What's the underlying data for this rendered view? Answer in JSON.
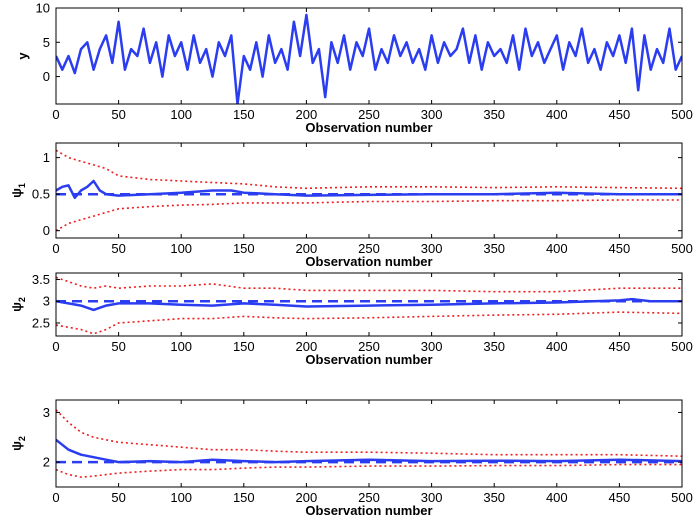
{
  "chart_data": [
    {
      "type": "line",
      "xlabel": "Observation number",
      "ylabel": "y",
      "ylabel_sub": "",
      "xlim": [
        0,
        500
      ],
      "ylim": [
        -4,
        10
      ],
      "xticks": [
        0,
        50,
        100,
        150,
        200,
        250,
        300,
        350,
        400,
        450,
        500
      ],
      "yticks": [
        0,
        5,
        10
      ],
      "series": [
        {
          "style": "solid",
          "color": "#2b3df0",
          "x": [
            0,
            5,
            10,
            15,
            20,
            25,
            30,
            35,
            40,
            45,
            50,
            55,
            60,
            65,
            70,
            75,
            80,
            85,
            90,
            95,
            100,
            105,
            110,
            115,
            120,
            125,
            130,
            135,
            140,
            145,
            150,
            155,
            160,
            165,
            170,
            175,
            180,
            185,
            190,
            195,
            200,
            205,
            210,
            215,
            220,
            225,
            230,
            235,
            240,
            245,
            250,
            255,
            260,
            265,
            270,
            275,
            280,
            285,
            290,
            295,
            300,
            305,
            310,
            315,
            320,
            325,
            330,
            335,
            340,
            345,
            350,
            355,
            360,
            365,
            370,
            375,
            380,
            385,
            390,
            395,
            400,
            405,
            410,
            415,
            420,
            425,
            430,
            435,
            440,
            445,
            450,
            455,
            460,
            465,
            470,
            475,
            480,
            485,
            490,
            495,
            500
          ],
          "y": [
            3,
            1,
            3,
            0.5,
            4,
            5,
            1,
            4,
            6,
            2,
            8,
            1,
            4,
            3,
            7,
            2,
            5,
            0,
            6,
            3,
            5,
            1,
            6,
            2,
            4,
            0,
            5,
            3,
            6,
            -4,
            3,
            1,
            5,
            0,
            6,
            2,
            4,
            1,
            8,
            3,
            9,
            2,
            4,
            -3,
            5,
            2,
            6,
            1,
            5,
            3,
            7,
            1,
            4,
            2,
            6,
            3,
            5,
            2,
            4,
            1,
            6,
            2,
            5,
            3,
            4,
            7,
            2,
            6,
            1,
            5,
            3,
            4,
            2,
            6,
            1,
            7,
            3,
            5,
            2,
            4,
            6,
            1,
            5,
            3,
            7,
            2,
            4,
            1,
            5,
            3,
            6,
            2,
            7,
            -2,
            6,
            1,
            4,
            2,
            7,
            1,
            3
          ]
        }
      ]
    },
    {
      "type": "line",
      "xlabel": "Observation number",
      "ylabel": "ψ",
      "ylabel_sub": "1",
      "xlim": [
        0,
        500
      ],
      "ylim": [
        -0.1,
        1.2
      ],
      "xticks": [
        0,
        50,
        100,
        150,
        200,
        250,
        300,
        350,
        400,
        450,
        500
      ],
      "yticks": [
        0,
        0.5,
        1
      ],
      "series": [
        {
          "style": "dotted",
          "color": "#ee1c1c",
          "x": [
            0,
            10,
            20,
            30,
            40,
            50,
            75,
            100,
            125,
            150,
            175,
            200,
            250,
            300,
            350,
            400,
            450,
            500
          ],
          "y": [
            1.1,
            1.0,
            0.95,
            0.9,
            0.85,
            0.75,
            0.7,
            0.68,
            0.66,
            0.64,
            0.6,
            0.58,
            0.6,
            0.6,
            0.59,
            0.6,
            0.59,
            0.58
          ]
        },
        {
          "style": "dotted",
          "color": "#ee1c1c",
          "x": [
            0,
            10,
            20,
            30,
            40,
            50,
            75,
            100,
            125,
            150,
            175,
            200,
            250,
            300,
            350,
            400,
            450,
            500
          ],
          "y": [
            0.0,
            0.1,
            0.15,
            0.2,
            0.25,
            0.3,
            0.33,
            0.35,
            0.36,
            0.38,
            0.38,
            0.38,
            0.4,
            0.4,
            0.41,
            0.41,
            0.42,
            0.42
          ]
        },
        {
          "style": "dashed",
          "color": "#2b3df0",
          "x": [
            0,
            500
          ],
          "y": [
            0.5,
            0.5
          ]
        },
        {
          "style": "solid",
          "color": "#2b3df0",
          "x": [
            0,
            5,
            10,
            15,
            20,
            25,
            30,
            35,
            40,
            50,
            75,
            100,
            125,
            140,
            150,
            175,
            200,
            250,
            300,
            350,
            400,
            450,
            500
          ],
          "y": [
            0.55,
            0.6,
            0.62,
            0.45,
            0.55,
            0.6,
            0.68,
            0.55,
            0.5,
            0.48,
            0.5,
            0.52,
            0.55,
            0.55,
            0.52,
            0.5,
            0.48,
            0.49,
            0.5,
            0.5,
            0.52,
            0.5,
            0.5
          ]
        }
      ]
    },
    {
      "type": "line",
      "xlabel": "Observation number",
      "ylabel": "ψ",
      "ylabel_sub": "2",
      "xlim": [
        0,
        500
      ],
      "ylim": [
        2.2,
        3.65
      ],
      "xticks": [
        0,
        50,
        100,
        150,
        200,
        250,
        300,
        350,
        400,
        450,
        500
      ],
      "yticks": [
        2.5,
        3,
        3.5
      ],
      "series": [
        {
          "style": "dotted",
          "color": "#ee1c1c",
          "x": [
            0,
            10,
            20,
            30,
            40,
            50,
            75,
            100,
            125,
            150,
            175,
            200,
            250,
            300,
            350,
            400,
            450,
            500
          ],
          "y": [
            3.55,
            3.45,
            3.35,
            3.3,
            3.35,
            3.3,
            3.35,
            3.35,
            3.4,
            3.3,
            3.3,
            3.25,
            3.25,
            3.25,
            3.22,
            3.22,
            3.3,
            3.3
          ]
        },
        {
          "style": "dotted",
          "color": "#ee1c1c",
          "x": [
            0,
            10,
            20,
            30,
            40,
            50,
            75,
            100,
            125,
            150,
            175,
            200,
            250,
            300,
            350,
            400,
            450,
            500
          ],
          "y": [
            2.45,
            2.4,
            2.35,
            2.25,
            2.35,
            2.5,
            2.55,
            2.6,
            2.6,
            2.65,
            2.62,
            2.6,
            2.62,
            2.65,
            2.68,
            2.7,
            2.75,
            2.72
          ]
        },
        {
          "style": "dashed",
          "color": "#2b3df0",
          "x": [
            0,
            500
          ],
          "y": [
            3.0,
            3.0
          ]
        },
        {
          "style": "solid",
          "color": "#2b3df0",
          "x": [
            0,
            10,
            20,
            30,
            40,
            50,
            75,
            100,
            125,
            150,
            175,
            200,
            250,
            300,
            350,
            400,
            450,
            460,
            475,
            500
          ],
          "y": [
            3.0,
            2.95,
            2.9,
            2.8,
            2.9,
            2.95,
            2.95,
            2.92,
            2.9,
            2.95,
            2.92,
            2.88,
            2.9,
            2.92,
            2.95,
            2.97,
            3.02,
            3.05,
            3.0,
            3.0
          ]
        }
      ]
    },
    {
      "type": "line",
      "xlabel": "Observation number",
      "ylabel": "ψ",
      "ylabel_sub": "2",
      "xlim": [
        0,
        500
      ],
      "ylim": [
        1.5,
        3.25
      ],
      "xticks": [
        0,
        50,
        100,
        150,
        200,
        250,
        300,
        350,
        400,
        450,
        500
      ],
      "yticks": [
        2,
        3
      ],
      "series": [
        {
          "style": "dotted",
          "color": "#ee1c1c",
          "x": [
            0,
            10,
            20,
            30,
            40,
            50,
            75,
            100,
            125,
            150,
            175,
            200,
            250,
            300,
            350,
            400,
            450,
            500
          ],
          "y": [
            3.05,
            2.8,
            2.6,
            2.5,
            2.45,
            2.4,
            2.35,
            2.3,
            2.25,
            2.25,
            2.22,
            2.2,
            2.2,
            2.18,
            2.15,
            2.15,
            2.15,
            2.12
          ]
        },
        {
          "style": "dotted",
          "color": "#ee1c1c",
          "x": [
            0,
            10,
            20,
            30,
            40,
            50,
            75,
            100,
            125,
            150,
            175,
            200,
            250,
            300,
            350,
            400,
            450,
            500
          ],
          "y": [
            1.85,
            1.75,
            1.7,
            1.72,
            1.75,
            1.78,
            1.82,
            1.85,
            1.85,
            1.88,
            1.9,
            1.9,
            1.92,
            1.92,
            1.93,
            1.93,
            1.95,
            1.95
          ]
        },
        {
          "style": "dashed",
          "color": "#2b3df0",
          "x": [
            0,
            500
          ],
          "y": [
            2.0,
            2.0
          ]
        },
        {
          "style": "solid",
          "color": "#2b3df0",
          "x": [
            0,
            10,
            20,
            30,
            40,
            50,
            75,
            100,
            125,
            150,
            175,
            200,
            250,
            300,
            350,
            400,
            450,
            500
          ],
          "y": [
            2.45,
            2.25,
            2.15,
            2.1,
            2.05,
            2.0,
            2.02,
            2.0,
            2.05,
            2.02,
            2.0,
            2.02,
            2.05,
            2.02,
            2.03,
            2.02,
            2.05,
            2.02
          ]
        }
      ]
    }
  ]
}
